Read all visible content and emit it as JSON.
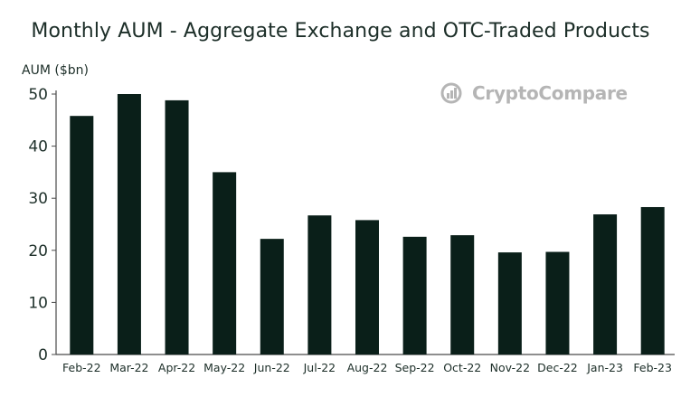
{
  "chart_data": {
    "type": "bar",
    "title": "Monthly AUM - Aggregate Exchange and OTC-Traded Products",
    "ylabel": "AUM ($bn)",
    "xlabel": "",
    "categories": [
      "Feb-22",
      "Mar-22",
      "Apr-22",
      "May-22",
      "Jun-22",
      "Jul-22",
      "Aug-22",
      "Sep-22",
      "Oct-22",
      "Nov-22",
      "Dec-22",
      "Jan-23",
      "Feb-23"
    ],
    "values": [
      45.8,
      50.0,
      48.8,
      35.0,
      22.2,
      26.7,
      25.8,
      22.6,
      22.9,
      19.6,
      19.7,
      26.9,
      28.3
    ],
    "ylim": [
      0,
      50
    ],
    "yticks": [
      0,
      10,
      20,
      30,
      40,
      50
    ],
    "grid": false,
    "bar_color": "#0a1f19"
  },
  "watermark": {
    "text": "CryptoCompare",
    "icon": "cryptocompare-logo-icon"
  }
}
